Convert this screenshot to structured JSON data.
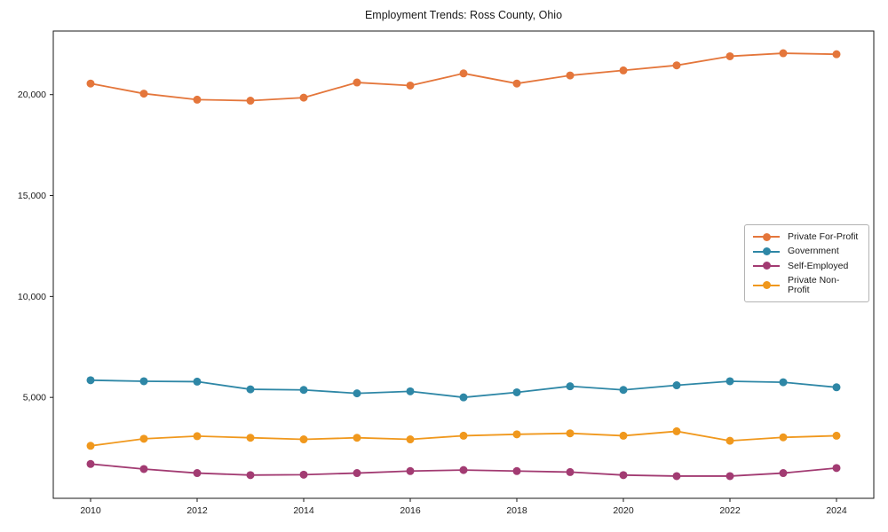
{
  "chart_data": {
    "type": "line",
    "title": "Employment Trends: Ross County, Ohio",
    "xlabel": "",
    "ylabel": "",
    "x": [
      2010,
      2011,
      2012,
      2013,
      2014,
      2015,
      2016,
      2017,
      2018,
      2019,
      2020,
      2021,
      2022,
      2023,
      2024
    ],
    "series": [
      {
        "name": "Private For-Profit",
        "color": "#E4763B",
        "values": [
          20550,
          20050,
          19750,
          19700,
          19850,
          20600,
          20450,
          21050,
          20550,
          20950,
          21200,
          21450,
          21900,
          22050,
          22000
        ]
      },
      {
        "name": "Government",
        "color": "#2E87A6",
        "values": [
          5850,
          5800,
          5780,
          5400,
          5370,
          5200,
          5300,
          5000,
          5250,
          5550,
          5370,
          5600,
          5800,
          5750,
          5500
        ]
      },
      {
        "name": "Self-Employed",
        "color": "#A23B72",
        "values": [
          1700,
          1450,
          1250,
          1150,
          1170,
          1250,
          1350,
          1400,
          1350,
          1300,
          1150,
          1100,
          1100,
          1250,
          1500
        ]
      },
      {
        "name": "Private Non-Profit",
        "color": "#F0981D",
        "values": [
          2600,
          2950,
          3080,
          3000,
          2920,
          3000,
          2920,
          3100,
          3170,
          3220,
          3100,
          3320,
          2850,
          3020,
          3100
        ]
      }
    ],
    "xlim": [
      2009.3,
      2024.7
    ],
    "ylim": [
      0,
      23150
    ],
    "xticks": [
      2010,
      2012,
      2014,
      2016,
      2018,
      2020,
      2022,
      2024
    ],
    "yticks": [
      5000,
      10000,
      15000,
      20000
    ],
    "ytick_labels": [
      "5,000",
      "10,000",
      "15,000",
      "20,000"
    ],
    "grid": false,
    "legend_position": "center-right"
  }
}
